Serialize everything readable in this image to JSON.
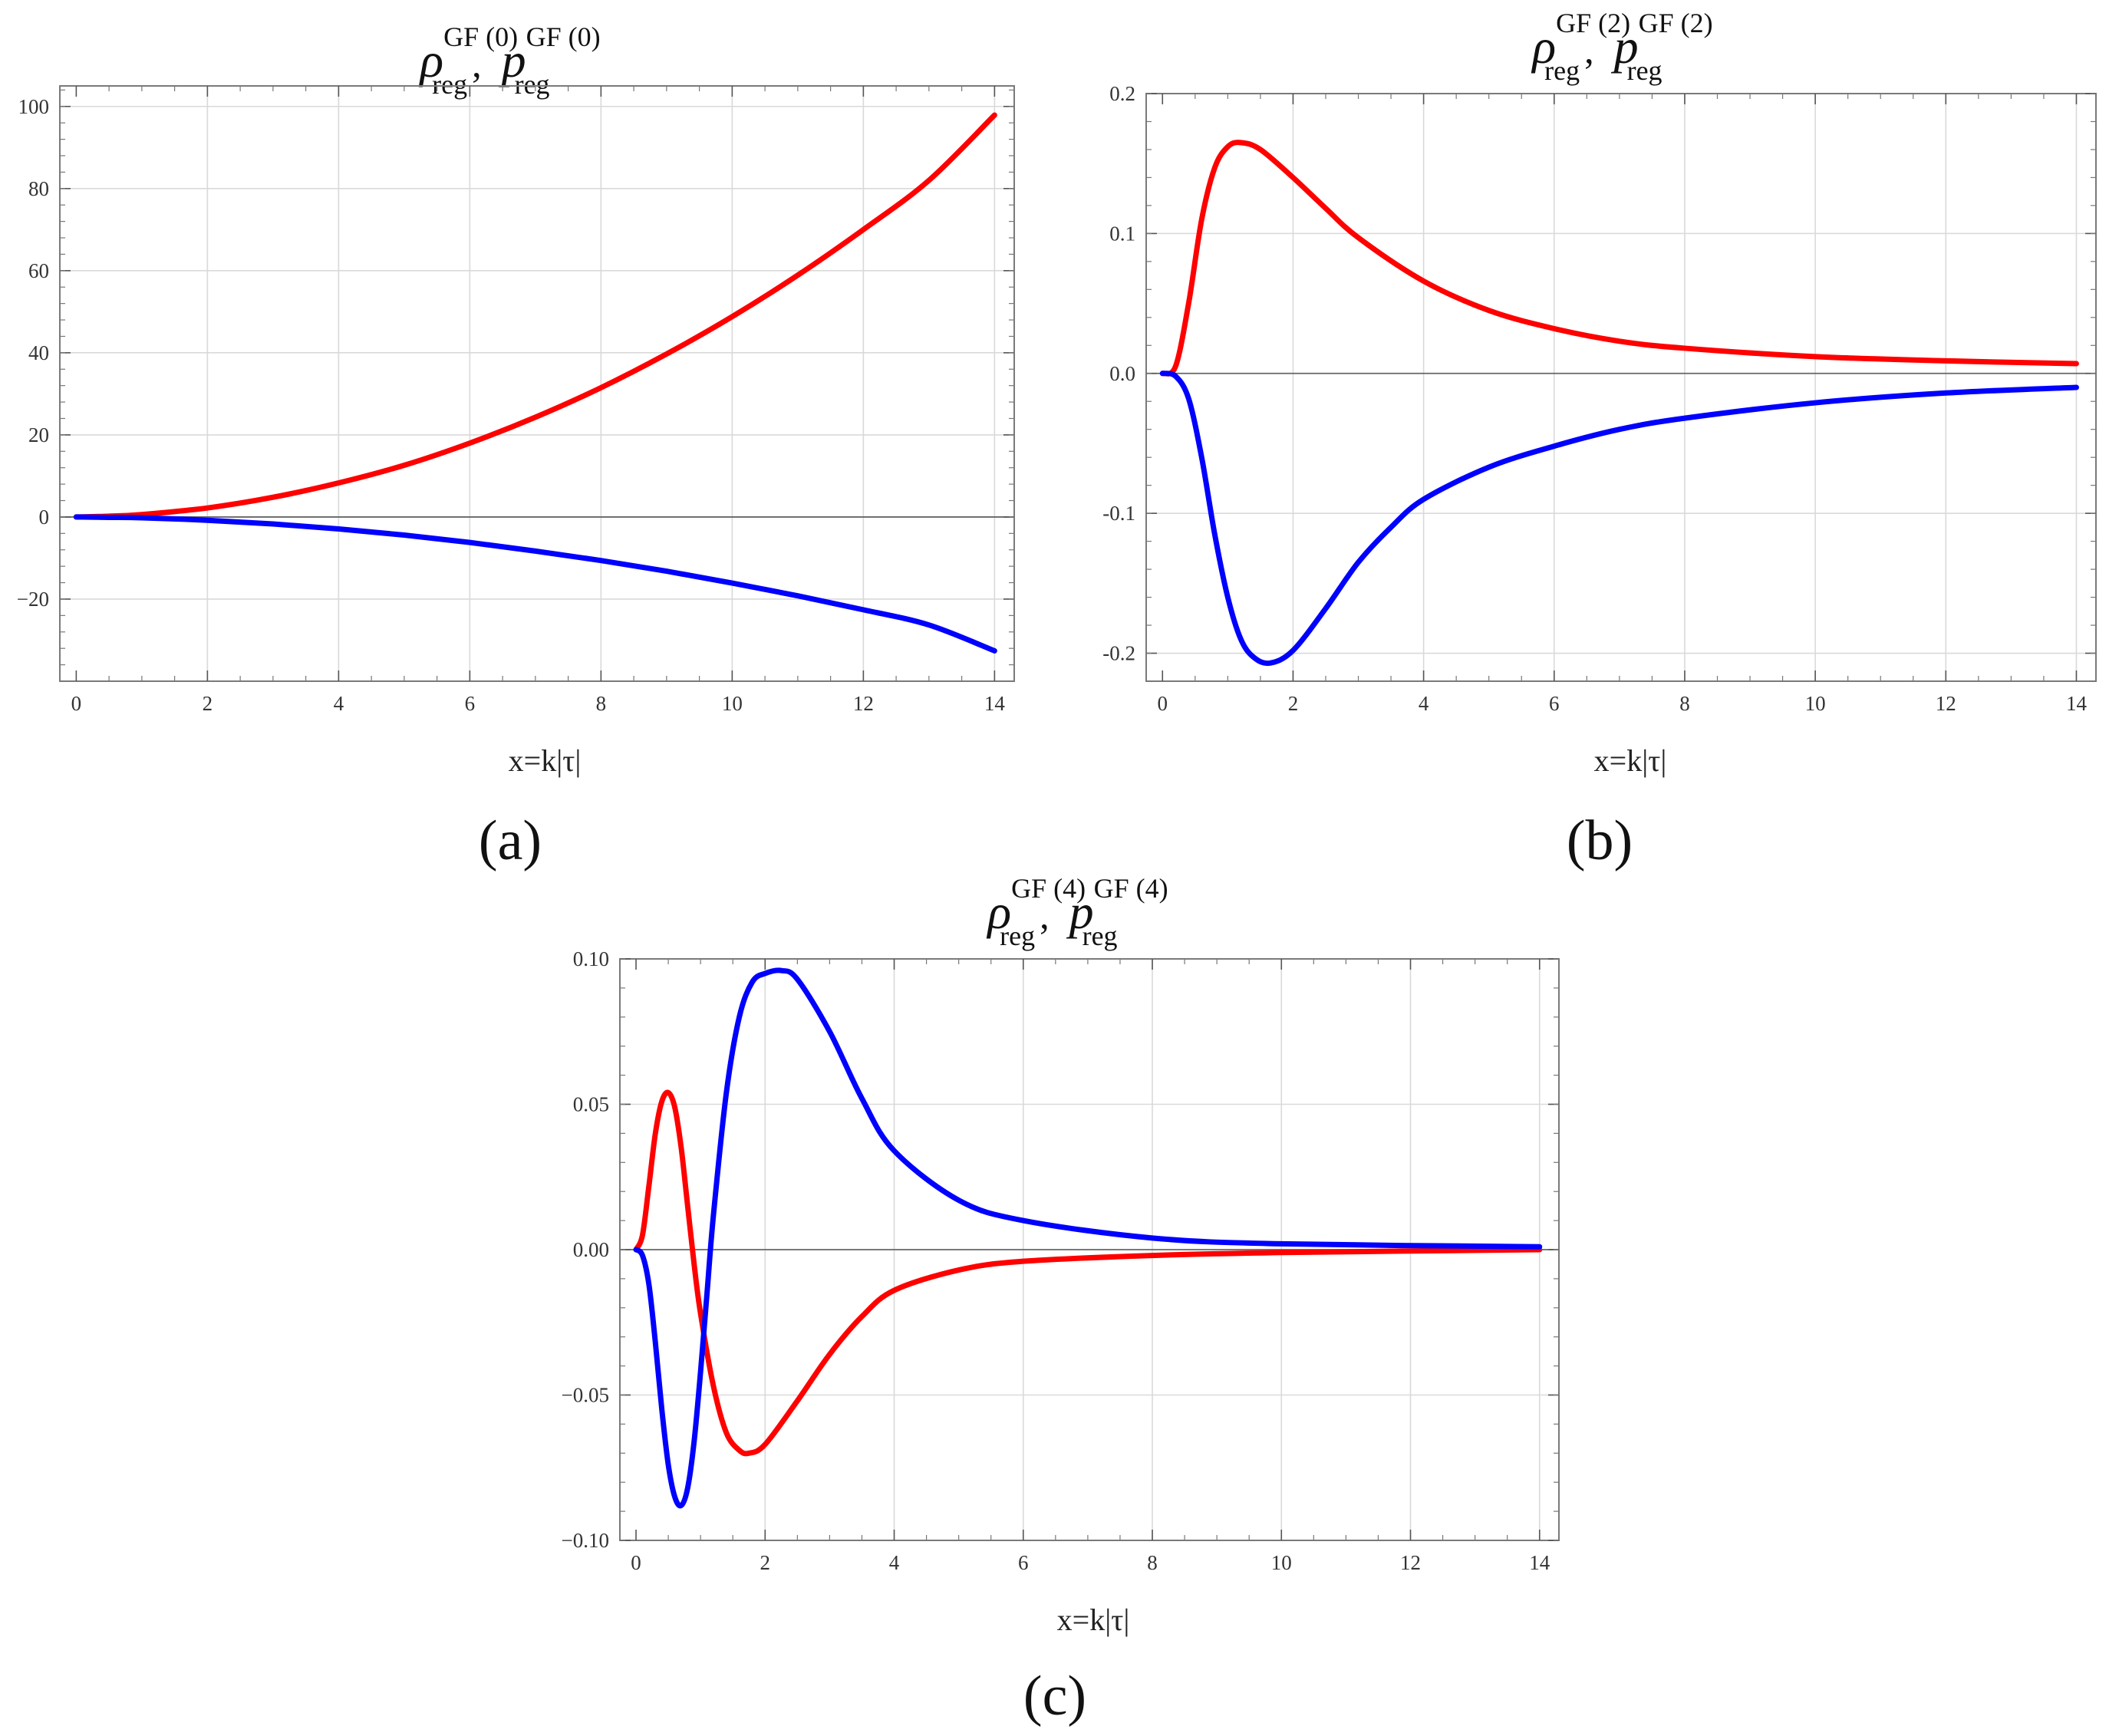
{
  "chart_data": [
    {
      "id": "a",
      "type": "line",
      "panel_label": "(a)",
      "title": {
        "symbol1": "ρ",
        "symbol2": "p",
        "superscript": "GF (0)",
        "subscript": "reg",
        "separator": ","
      },
      "xlabel": "x=k|τ|",
      "xlim": [
        -0.25,
        14.3
      ],
      "ylim": [
        -40,
        105
      ],
      "xticks": [
        0,
        2,
        4,
        6,
        8,
        10,
        12,
        14
      ],
      "xtick_labels": [
        "0",
        "2",
        "4",
        "6",
        "8",
        "10",
        "12",
        "14"
      ],
      "yticks": [
        -20,
        0,
        20,
        40,
        60,
        80,
        100
      ],
      "ytick_labels": [
        "−20",
        "0",
        "20",
        "40",
        "60",
        "80",
        "100"
      ],
      "grid": true,
      "series": [
        {
          "name": "rho",
          "color": "#ff0000",
          "x": [
            0,
            0.5,
            1,
            2,
            3,
            4,
            5,
            6,
            7,
            8,
            9,
            10,
            11,
            12,
            13,
            14
          ],
          "y": [
            0,
            0.2,
            0.6,
            2.2,
            4.8,
            8.3,
            12.6,
            18,
            24.3,
            31.5,
            39.7,
            48.8,
            58.9,
            70,
            82,
            97.9
          ]
        },
        {
          "name": "p",
          "color": "#0000ff",
          "x": [
            0,
            0.5,
            1,
            2,
            3,
            4,
            5,
            6,
            7,
            8,
            9,
            10,
            11,
            12,
            13,
            14
          ],
          "y": [
            0,
            -0.1,
            -0.2,
            -0.8,
            -1.7,
            -2.9,
            -4.4,
            -6.2,
            -8.3,
            -10.6,
            -13.2,
            -16.1,
            -19.2,
            -22.6,
            -26.3,
            -32.6
          ]
        }
      ]
    },
    {
      "id": "b",
      "type": "line",
      "panel_label": "(b)",
      "title": {
        "symbol1": "ρ",
        "symbol2": "p",
        "superscript": "GF (2)",
        "subscript": "reg",
        "separator": ","
      },
      "xlabel": "x=k|τ|",
      "xlim": [
        -0.25,
        14.3
      ],
      "ylim": [
        -0.22,
        0.2
      ],
      "xticks": [
        0,
        2,
        4,
        6,
        8,
        10,
        12,
        14
      ],
      "xtick_labels": [
        "0",
        "2",
        "4",
        "6",
        "8",
        "10",
        "12",
        "14"
      ],
      "yticks": [
        -0.2,
        -0.1,
        0.0,
        0.1,
        0.2
      ],
      "ytick_labels": [
        "-0.2",
        "-0.1",
        "0.0",
        "0.1",
        "0.2"
      ],
      "grid": true,
      "series": [
        {
          "name": "rho",
          "color": "#ff0000",
          "x": [
            0,
            0.2,
            0.4,
            0.6,
            0.8,
            1.0,
            1.2,
            1.5,
            2.0,
            2.5,
            3.0,
            4.0,
            5.0,
            6.0,
            7.0,
            8.0,
            10.0,
            12.0,
            14.0
          ],
          "y": [
            0,
            0.005,
            0.05,
            0.11,
            0.147,
            0.162,
            0.165,
            0.16,
            0.14,
            0.118,
            0.097,
            0.066,
            0.045,
            0.032,
            0.023,
            0.018,
            0.012,
            0.009,
            0.007
          ]
        },
        {
          "name": "p",
          "color": "#0000ff",
          "x": [
            0,
            0.2,
            0.4,
            0.6,
            0.8,
            1.0,
            1.2,
            1.4,
            1.65,
            2.0,
            2.5,
            3.0,
            3.5,
            4.0,
            5.0,
            6.0,
            7.0,
            8.0,
            10.0,
            12.0,
            14.0
          ],
          "y": [
            0,
            -0.002,
            -0.018,
            -0.06,
            -0.115,
            -0.16,
            -0.19,
            -0.203,
            -0.207,
            -0.198,
            -0.168,
            -0.135,
            -0.11,
            -0.09,
            -0.067,
            -0.052,
            -0.04,
            -0.032,
            -0.021,
            -0.014,
            -0.01
          ]
        }
      ]
    },
    {
      "id": "c",
      "type": "line",
      "panel_label": "(c)",
      "title": {
        "symbol1": "ρ",
        "symbol2": "p",
        "superscript": "GF (4)",
        "subscript": "reg",
        "separator": ","
      },
      "xlabel": "x=k|τ|",
      "xlim": [
        -0.25,
        14.3
      ],
      "ylim": [
        -0.1,
        0.1
      ],
      "xticks": [
        0,
        2,
        4,
        6,
        8,
        10,
        12,
        14
      ],
      "xtick_labels": [
        "0",
        "2",
        "4",
        "6",
        "8",
        "10",
        "12",
        "14"
      ],
      "yticks": [
        -0.1,
        -0.05,
        0.0,
        0.05,
        0.1
      ],
      "ytick_labels": [
        "−0.10",
        "−0.05",
        "0.00",
        "0.05",
        "0.10"
      ],
      "grid": true,
      "series": [
        {
          "name": "rho",
          "color": "#ff0000",
          "x": [
            0,
            0.1,
            0.2,
            0.3,
            0.4,
            0.5,
            0.6,
            0.7,
            0.8,
            0.9,
            1.0,
            1.2,
            1.4,
            1.6,
            1.75,
            2.0,
            2.5,
            3.0,
            3.5,
            4.0,
            5.0,
            6.0,
            8.0,
            10.0,
            14.0
          ],
          "y": [
            0,
            0.005,
            0.022,
            0.04,
            0.051,
            0.054,
            0.049,
            0.035,
            0.015,
            -0.005,
            -0.022,
            -0.047,
            -0.063,
            -0.069,
            -0.07,
            -0.067,
            -0.052,
            -0.036,
            -0.023,
            -0.014,
            -0.007,
            -0.004,
            -0.002,
            -0.001,
            0
          ]
        },
        {
          "name": "p",
          "color": "#0000ff",
          "x": [
            0,
            0.1,
            0.2,
            0.3,
            0.4,
            0.5,
            0.6,
            0.7,
            0.8,
            0.9,
            1.0,
            1.1,
            1.2,
            1.4,
            1.6,
            1.8,
            2.0,
            2.25,
            2.5,
            3.0,
            3.5,
            4.0,
            5.0,
            6.0,
            8.0,
            10.0,
            14.0
          ],
          "y": [
            0,
            -0.002,
            -0.012,
            -0.032,
            -0.055,
            -0.074,
            -0.085,
            -0.088,
            -0.082,
            -0.066,
            -0.042,
            -0.015,
            0.012,
            0.054,
            0.08,
            0.092,
            0.095,
            0.096,
            0.093,
            0.075,
            0.052,
            0.034,
            0.017,
            0.01,
            0.004,
            0.002,
            0.001
          ]
        }
      ]
    }
  ]
}
